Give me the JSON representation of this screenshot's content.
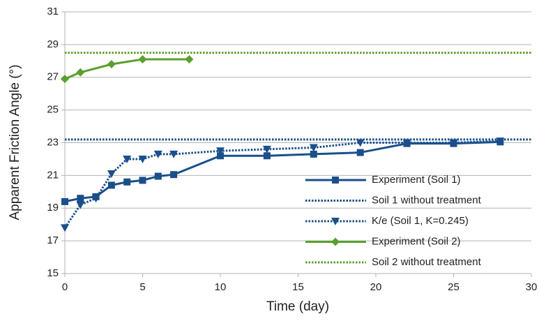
{
  "chart_data": {
    "type": "line",
    "xlabel": "Time (day)",
    "ylabel": "Apparent Friction Angle (°)",
    "xlim": [
      0,
      30
    ],
    "xticks": [
      0,
      5,
      10,
      15,
      20,
      25,
      30
    ],
    "ylim": [
      15,
      31
    ],
    "yticks": [
      15,
      17,
      19,
      21,
      23,
      25,
      27,
      29,
      31
    ],
    "grid": true,
    "legend": "lower right",
    "series": [
      {
        "name": "Experiment (Soil 1)",
        "color": "#1a4f8b",
        "dash": "solid",
        "marker": "square",
        "x": [
          0,
          1,
          2,
          3,
          4,
          5,
          6,
          7,
          10,
          13,
          16,
          19,
          22,
          25,
          28
        ],
        "values": [
          19.4,
          19.6,
          19.7,
          20.4,
          20.6,
          20.7,
          20.95,
          21.05,
          22.2,
          22.2,
          22.3,
          22.4,
          22.95,
          22.95,
          23.05
        ]
      },
      {
        "name": "Soil 1 without treatment",
        "color": "#1a4f8b",
        "dash": "dotted",
        "marker": "none",
        "x": [
          0,
          30
        ],
        "values": [
          23.2,
          23.2
        ]
      },
      {
        "name": "K/e (Soil 1, K=0.245)",
        "color": "#1a4f8b",
        "dash": "dotted",
        "marker": "triangle-down",
        "x": [
          0,
          1,
          2,
          3,
          4,
          5,
          6,
          7,
          10,
          13,
          16,
          19,
          22,
          25,
          28
        ],
        "values": [
          17.8,
          19.2,
          19.6,
          21.1,
          22.0,
          22.0,
          22.3,
          22.3,
          22.5,
          22.6,
          22.7,
          23.0,
          23.0,
          23.0,
          23.1
        ]
      },
      {
        "name": "Experiment (Soil 2)",
        "color": "#5aa02c",
        "dash": "solid",
        "marker": "diamond",
        "x": [
          0,
          1,
          3,
          5,
          8
        ],
        "values": [
          26.9,
          27.3,
          27.8,
          28.1,
          28.1
        ]
      },
      {
        "name": "Soil 2 without treatment",
        "color": "#5aa02c",
        "dash": "dotted",
        "marker": "none",
        "x": [
          0,
          30
        ],
        "values": [
          28.5,
          28.5
        ]
      }
    ]
  }
}
